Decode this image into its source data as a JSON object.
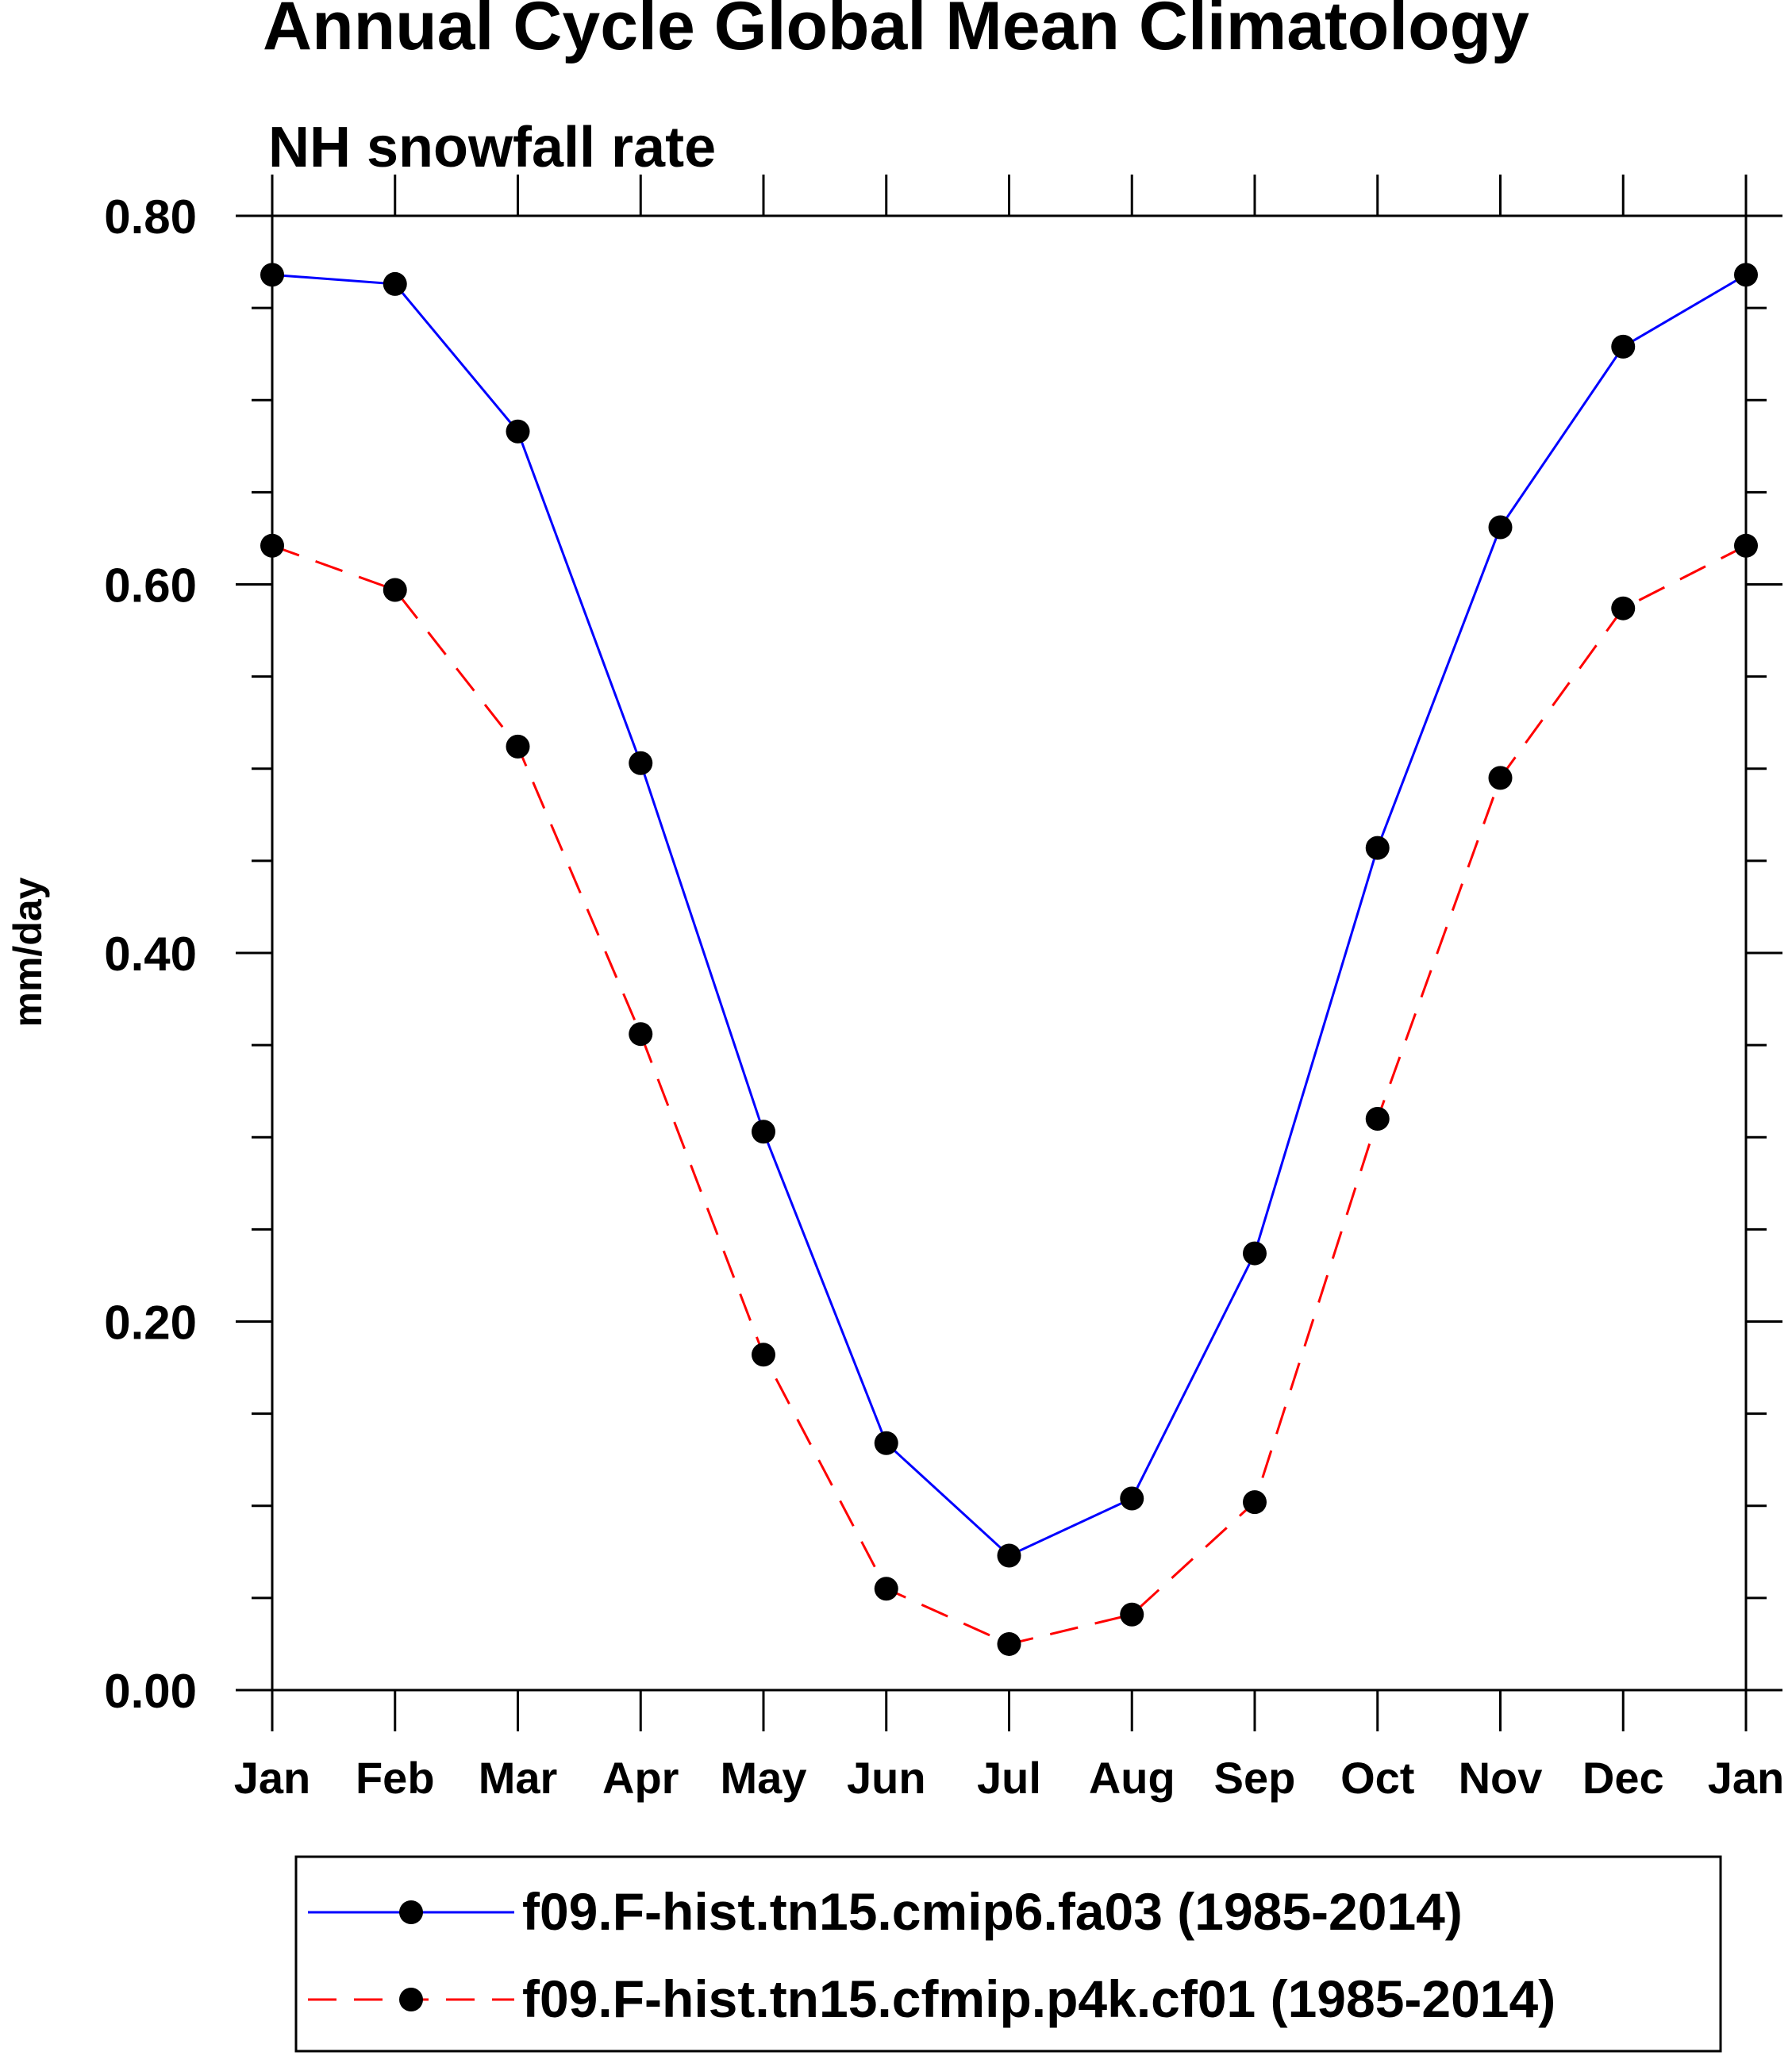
{
  "chart_data": {
    "type": "line",
    "title": "Annual Cycle Global Mean Climatology",
    "subtitle": "NH snowfall rate",
    "xlabel": "",
    "ylabel": "mm/day",
    "categories": [
      "Jan",
      "Feb",
      "Mar",
      "Apr",
      "May",
      "Jun",
      "Jul",
      "Aug",
      "Sep",
      "Oct",
      "Nov",
      "Dec",
      "Jan"
    ],
    "ylim": [
      0,
      0.8
    ],
    "yticks": [
      0,
      0.2,
      0.4,
      0.6,
      0.8
    ],
    "ytick_labels": [
      "0.00",
      "0.20",
      "0.40",
      "0.60",
      "0.80"
    ],
    "grid": false,
    "legend_position": "bottom",
    "series": [
      {
        "name": "f09.F-hist.tn15.cmip6.fa03 (1985-2014)",
        "color": "#0000ff",
        "line_style": "solid",
        "marker": "filled-circle",
        "values": [
          0.768,
          0.763,
          0.683,
          0.503,
          0.303,
          0.134,
          0.073,
          0.104,
          0.237,
          0.457,
          0.631,
          0.729,
          0.768
        ]
      },
      {
        "name": "f09.F-hist.tn15.cfmip.p4k.cf01 (1985-2014)",
        "color": "#ff0000",
        "line_style": "dashed",
        "marker": "filled-circle",
        "values": [
          0.621,
          0.597,
          0.512,
          0.356,
          0.182,
          0.055,
          0.025,
          0.041,
          0.102,
          0.31,
          0.495,
          0.587,
          0.621
        ]
      }
    ]
  }
}
